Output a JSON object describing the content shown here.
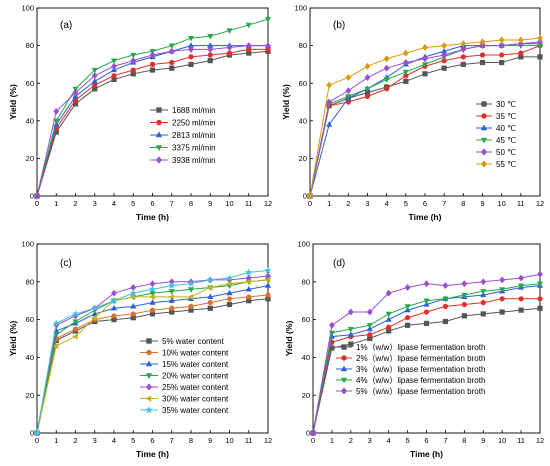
{
  "chart_data": [
    {
      "type": "line",
      "panel_label": "(a)",
      "xlabel": "Time (h)",
      "ylabel": "Yield (%)",
      "xlim": [
        0,
        12
      ],
      "ylim": [
        0,
        100
      ],
      "xticks": [
        0,
        1,
        2,
        3,
        4,
        5,
        6,
        7,
        8,
        9,
        10,
        11,
        12
      ],
      "yticks": [
        0,
        20,
        40,
        60,
        80,
        100
      ],
      "legend_position": "bottom-right",
      "x": [
        0,
        1,
        2,
        3,
        4,
        5,
        6,
        7,
        8,
        9,
        10,
        11,
        12
      ],
      "series": [
        {
          "name": "1688 ml/min",
          "color": "#555555",
          "marker": "square",
          "values": [
            0,
            34,
            49,
            57,
            62,
            65,
            67,
            68,
            70,
            72,
            75,
            76,
            77
          ]
        },
        {
          "name": "2250 ml/min",
          "color": "#e0302a",
          "marker": "circle",
          "values": [
            0,
            36,
            51,
            59,
            64,
            67,
            70,
            71,
            74,
            75,
            76,
            78,
            78
          ]
        },
        {
          "name": "2813 ml/min",
          "color": "#2a5fd6",
          "marker": "triangle-up",
          "values": [
            0,
            38,
            53,
            61,
            67,
            71,
            74,
            77,
            80,
            80,
            80,
            80,
            80
          ]
        },
        {
          "name": "3375 ml/min",
          "color": "#25a84a",
          "marker": "triangle-down",
          "values": [
            0,
            40,
            57,
            67,
            72,
            75,
            77,
            80,
            84,
            85,
            88,
            91,
            94
          ]
        },
        {
          "name": "3938 ml/min",
          "color": "#9a4fd0",
          "marker": "diamond",
          "values": [
            0,
            45,
            55,
            64,
            69,
            72,
            75,
            77,
            78,
            78,
            79,
            80,
            80
          ]
        }
      ]
    },
    {
      "type": "line",
      "panel_label": "(b)",
      "xlabel": "Time (h)",
      "ylabel": "Yield (%)",
      "xlim": [
        0,
        12
      ],
      "ylim": [
        0,
        100
      ],
      "xticks": [
        0,
        1,
        2,
        3,
        4,
        5,
        6,
        7,
        8,
        9,
        10,
        11,
        12
      ],
      "yticks": [
        0,
        20,
        40,
        60,
        80,
        100
      ],
      "legend_position": "right",
      "x": [
        0,
        1,
        2,
        3,
        4,
        5,
        6,
        7,
        8,
        9,
        10,
        11,
        12
      ],
      "series": [
        {
          "name": "30 ℃",
          "color": "#555555",
          "marker": "square",
          "values": [
            0,
            48,
            52,
            55,
            58,
            61,
            65,
            68,
            70,
            71,
            71,
            74,
            74
          ]
        },
        {
          "name": "35 ℃",
          "color": "#e0302a",
          "marker": "circle",
          "values": [
            0,
            48,
            50,
            53,
            57,
            64,
            69,
            72,
            74,
            75,
            75,
            76,
            80
          ]
        },
        {
          "name": "40 ℃",
          "color": "#2a5fd6",
          "marker": "triangle-up",
          "values": [
            0,
            38,
            52,
            57,
            63,
            70,
            74,
            77,
            80,
            80,
            80,
            81,
            81
          ]
        },
        {
          "name": "45 ℃",
          "color": "#25a84a",
          "marker": "triangle-down",
          "values": [
            0,
            49,
            53,
            57,
            62,
            66,
            70,
            74,
            78,
            80,
            80,
            80,
            80
          ]
        },
        {
          "name": "50 ℃",
          "color": "#9a4fd0",
          "marker": "diamond",
          "values": [
            0,
            50,
            56,
            63,
            68,
            71,
            73,
            75,
            78,
            80,
            80,
            81,
            82
          ]
        },
        {
          "name": "55 ℃",
          "color": "#d99a10",
          "marker": "diamond",
          "values": [
            0,
            59,
            63,
            69,
            73,
            76,
            79,
            80,
            81,
            82,
            83,
            83,
            84
          ]
        }
      ]
    },
    {
      "type": "line",
      "panel_label": "(c)",
      "xlabel": "Time (h)",
      "ylabel": "Yield (%)",
      "xlim": [
        0,
        12
      ],
      "ylim": [
        0,
        100
      ],
      "xticks": [
        0,
        1,
        2,
        3,
        4,
        5,
        6,
        7,
        8,
        9,
        10,
        11,
        12
      ],
      "yticks": [
        0,
        20,
        40,
        60,
        80,
        100
      ],
      "legend_position": "bottom-right",
      "x": [
        0,
        1,
        2,
        3,
        4,
        5,
        6,
        7,
        8,
        9,
        10,
        11,
        12
      ],
      "series": [
        {
          "name": "5% water content",
          "color": "#555555",
          "marker": "square",
          "values": [
            0,
            49,
            54,
            59,
            60,
            61,
            63,
            64,
            65,
            66,
            68,
            70,
            71
          ]
        },
        {
          "name": "10% water content",
          "color": "#e0702a",
          "marker": "circle",
          "values": [
            0,
            50,
            55,
            60,
            62,
            63,
            65,
            66,
            67,
            69,
            71,
            72,
            73
          ]
        },
        {
          "name": "15% water content",
          "color": "#2a5fd6",
          "marker": "triangle-up",
          "values": [
            0,
            54,
            58,
            63,
            66,
            67,
            69,
            70,
            71,
            72,
            74,
            76,
            78
          ]
        },
        {
          "name": "20% water content",
          "color": "#25a84a",
          "marker": "triangle-down",
          "values": [
            0,
            52,
            59,
            65,
            70,
            72,
            74,
            75,
            76,
            77,
            78,
            80,
            81
          ]
        },
        {
          "name": "25% water content",
          "color": "#9a4fd0",
          "marker": "diamond",
          "values": [
            0,
            57,
            62,
            66,
            74,
            77,
            79,
            80,
            80,
            81,
            81,
            82,
            83
          ]
        },
        {
          "name": "30% water content",
          "color": "#c4b01c",
          "marker": "triangle-left",
          "values": [
            0,
            46,
            51,
            61,
            70,
            72,
            72,
            72,
            72,
            77,
            79,
            80,
            81
          ]
        },
        {
          "name": "35% water content",
          "color": "#3fc0e0",
          "marker": "star",
          "values": [
            0,
            58,
            63,
            66,
            70,
            74,
            76,
            78,
            79,
            81,
            82,
            85,
            86
          ]
        }
      ]
    },
    {
      "type": "line",
      "panel_label": "(d)",
      "xlabel": "Time (h)",
      "ylabel": "Yield (%)",
      "xlim": [
        0,
        12
      ],
      "ylim": [
        0,
        100
      ],
      "xticks": [
        0,
        1,
        2,
        3,
        4,
        5,
        6,
        7,
        8,
        9,
        10,
        11,
        12
      ],
      "yticks": [
        0,
        20,
        40,
        60,
        80,
        100
      ],
      "legend_position": "bottom-right",
      "x": [
        0,
        1,
        2,
        3,
        4,
        5,
        6,
        7,
        8,
        9,
        10,
        11,
        12
      ],
      "series": [
        {
          "name": "1%（w/w）lipase fermentation broth",
          "color": "#555555",
          "marker": "square",
          "values": [
            0,
            45,
            47,
            50,
            54,
            57,
            58,
            59,
            62,
            63,
            64,
            65,
            66
          ]
        },
        {
          "name": "2%（w/w）lipase fermentation broth",
          "color": "#e0302a",
          "marker": "circle",
          "values": [
            0,
            48,
            51,
            52,
            56,
            61,
            64,
            67,
            68,
            69,
            71,
            71,
            71
          ]
        },
        {
          "name": "3%（w/w）lipase fermentation broth",
          "color": "#2a5fd6",
          "marker": "triangle-up",
          "values": [
            0,
            51,
            52,
            55,
            60,
            65,
            68,
            71,
            72,
            73,
            75,
            77,
            78
          ]
        },
        {
          "name": "4%（w/w）lipase fermentation broth",
          "color": "#25a84a",
          "marker": "triangle-down",
          "values": [
            0,
            53,
            55,
            57,
            63,
            67,
            70,
            71,
            73,
            75,
            76,
            78,
            79
          ]
        },
        {
          "name": "5%（w/w）lipase fermentation broth",
          "color": "#9a4fd0",
          "marker": "diamond",
          "values": [
            0,
            57,
            64,
            64,
            74,
            77,
            79,
            78,
            79,
            80,
            81,
            82,
            84
          ]
        }
      ]
    }
  ]
}
